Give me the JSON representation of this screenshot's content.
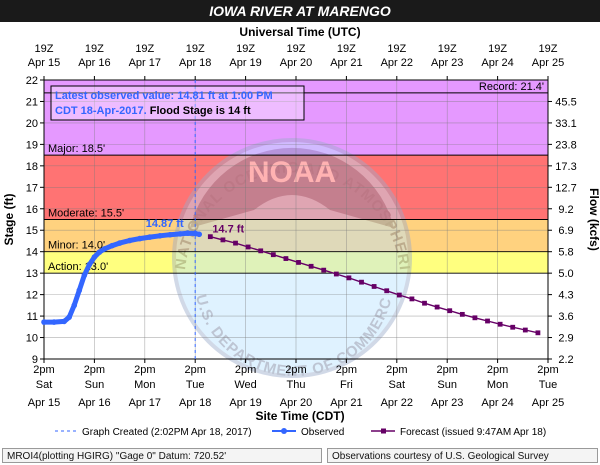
{
  "chart_data": {
    "type": "line",
    "title": "IOWA RIVER AT MARENGO",
    "top_axis_title": "Universal Time (UTC)",
    "bottom_axis_title": "Site Time (CDT)",
    "ylabel": "Stage (ft)",
    "y2label": "Flow (kcfs)",
    "ylim": [
      9,
      22
    ],
    "yticks": [
      9,
      10,
      11,
      12,
      13,
      14,
      15,
      16,
      17,
      18,
      19,
      20,
      21,
      22
    ],
    "xlim": [
      "Apr 15 2pm",
      "Apr 25 2pm"
    ],
    "xticks_bottom": [
      {
        "time": "2pm",
        "day": "Sat",
        "date": "Apr 15"
      },
      {
        "time": "2pm",
        "day": "Sun",
        "date": "Apr 16"
      },
      {
        "time": "2pm",
        "day": "Mon",
        "date": "Apr 17"
      },
      {
        "time": "2pm",
        "day": "Tue",
        "date": "Apr 18"
      },
      {
        "time": "2pm",
        "day": "Wed",
        "date": "Apr 19"
      },
      {
        "time": "2pm",
        "day": "Thu",
        "date": "Apr 20"
      },
      {
        "time": "2pm",
        "day": "Fri",
        "date": "Apr 21"
      },
      {
        "time": "2pm",
        "day": "Sat",
        "date": "Apr 22"
      },
      {
        "time": "2pm",
        "day": "Sun",
        "date": "Apr 23"
      },
      {
        "time": "2pm",
        "day": "Mon",
        "date": "Apr 24"
      },
      {
        "time": "2pm",
        "day": "Tue",
        "date": "Apr 25"
      }
    ],
    "xticks_top": [
      {
        "time": "19Z",
        "date": "Apr 15"
      },
      {
        "time": "19Z",
        "date": "Apr 16"
      },
      {
        "time": "19Z",
        "date": "Apr 17"
      },
      {
        "time": "19Z",
        "date": "Apr 18"
      },
      {
        "time": "19Z",
        "date": "Apr 19"
      },
      {
        "time": "19Z",
        "date": "Apr 20"
      },
      {
        "time": "19Z",
        "date": "Apr 21"
      },
      {
        "time": "19Z",
        "date": "Apr 22"
      },
      {
        "time": "19Z",
        "date": "Apr 23"
      },
      {
        "time": "19Z",
        "date": "Apr 24"
      },
      {
        "time": "19Z",
        "date": "Apr 25"
      }
    ],
    "flow_ticks": [
      {
        "stage": 9,
        "label": "2.2"
      },
      {
        "stage": 10,
        "label": "2.9"
      },
      {
        "stage": 11,
        "label": "3.6"
      },
      {
        "stage": 12,
        "label": "4.3"
      },
      {
        "stage": 13,
        "label": "5.0"
      },
      {
        "stage": 14,
        "label": "5.8"
      },
      {
        "stage": 15,
        "label": "6.9"
      },
      {
        "stage": 16,
        "label": "9.2"
      },
      {
        "stage": 17,
        "label": "12.7"
      },
      {
        "stage": 18,
        "label": "17.3"
      },
      {
        "stage": 19,
        "label": "23.8"
      },
      {
        "stage": 20,
        "label": "33.1"
      },
      {
        "stage": 21,
        "label": "45.5"
      }
    ],
    "flood_categories": [
      {
        "name": "Action",
        "stage": 13.0,
        "label": "Action: 13.0'",
        "color": "#ffff00"
      },
      {
        "name": "Minor",
        "stage": 14.0,
        "label": "Minor: 14.0'",
        "color": "#ffa500"
      },
      {
        "name": "Moderate",
        "stage": 15.5,
        "label": "Moderate: 15.5'",
        "color": "#ff0000"
      },
      {
        "name": "Major",
        "stage": 18.5,
        "label": "Major: 18.5'",
        "color": "#cc33ff"
      },
      {
        "name": "Record",
        "stage": 21.4,
        "label": "Record: 21.4'",
        "color": "#cc33ff"
      }
    ],
    "series": [
      {
        "name": "Observed",
        "color": "#3366ff",
        "points": [
          {
            "day": 0.0,
            "stage": 10.72
          },
          {
            "day": 0.2,
            "stage": 10.72
          },
          {
            "day": 0.4,
            "stage": 10.75
          },
          {
            "day": 0.5,
            "stage": 10.95
          },
          {
            "day": 0.6,
            "stage": 11.5
          },
          {
            "day": 0.7,
            "stage": 12.2
          },
          {
            "day": 0.8,
            "stage": 12.9
          },
          {
            "day": 0.9,
            "stage": 13.4
          },
          {
            "day": 1.0,
            "stage": 13.75
          },
          {
            "day": 1.1,
            "stage": 13.98
          },
          {
            "day": 1.2,
            "stage": 14.13
          },
          {
            "day": 1.35,
            "stage": 14.28
          },
          {
            "day": 1.5,
            "stage": 14.4
          },
          {
            "day": 1.7,
            "stage": 14.52
          },
          {
            "day": 1.9,
            "stage": 14.61
          },
          {
            "day": 2.1,
            "stage": 14.68
          },
          {
            "day": 2.3,
            "stage": 14.74
          },
          {
            "day": 2.5,
            "stage": 14.79
          },
          {
            "day": 2.7,
            "stage": 14.83
          },
          {
            "day": 2.85,
            "stage": 14.86
          },
          {
            "day": 3.0,
            "stage": 14.85
          },
          {
            "day": 3.08,
            "stage": 14.81
          }
        ]
      },
      {
        "name": "Forecast",
        "color": "#660066",
        "points": [
          {
            "day": 3.3,
            "stage": 14.7
          },
          {
            "day": 3.55,
            "stage": 14.55
          },
          {
            "day": 3.8,
            "stage": 14.4
          },
          {
            "day": 4.05,
            "stage": 14.22
          },
          {
            "day": 4.3,
            "stage": 14.04
          },
          {
            "day": 4.55,
            "stage": 13.86
          },
          {
            "day": 4.8,
            "stage": 13.68
          },
          {
            "day": 5.05,
            "stage": 13.5
          },
          {
            "day": 5.3,
            "stage": 13.32
          },
          {
            "day": 5.55,
            "stage": 13.14
          },
          {
            "day": 5.8,
            "stage": 12.96
          },
          {
            "day": 6.05,
            "stage": 12.78
          },
          {
            "day": 6.3,
            "stage": 12.58
          },
          {
            "day": 6.55,
            "stage": 12.38
          },
          {
            "day": 6.8,
            "stage": 12.18
          },
          {
            "day": 7.05,
            "stage": 11.98
          },
          {
            "day": 7.3,
            "stage": 11.8
          },
          {
            "day": 7.55,
            "stage": 11.6
          },
          {
            "day": 7.8,
            "stage": 11.42
          },
          {
            "day": 8.05,
            "stage": 11.25
          },
          {
            "day": 8.3,
            "stage": 11.08
          },
          {
            "day": 8.55,
            "stage": 10.92
          },
          {
            "day": 8.8,
            "stage": 10.77
          },
          {
            "day": 9.05,
            "stage": 10.62
          },
          {
            "day": 9.3,
            "stage": 10.48
          },
          {
            "day": 9.55,
            "stage": 10.35
          },
          {
            "day": 9.8,
            "stage": 10.22
          }
        ]
      }
    ],
    "graph_created_day": 3.0,
    "annotations": [
      {
        "text": "14.87 ft",
        "day": 2.85,
        "stage": 14.86,
        "color": "#3366ff"
      },
      {
        "text": "14.7 ft",
        "day": 3.3,
        "stage": 14.7,
        "color": "#660066"
      }
    ],
    "grid": true
  },
  "info_box": {
    "line1": "Latest observed value: 14.81 ft at 1:00 PM",
    "line2": "CDT 18-Apr-2017.",
    "flood_stage": " Flood Stage is 14 ft"
  },
  "legend": [
    {
      "label": "Graph Created (2:02PM Apr 18, 2017)",
      "style": "dashed",
      "color": "#3366ff"
    },
    {
      "label": "Observed",
      "style": "line-dot",
      "color": "#3366ff"
    },
    {
      "label": "Forecast (issued 9:47AM Apr 18)",
      "style": "line-square",
      "color": "#660066"
    }
  ],
  "footer": {
    "left": "MROI4(plotting HGIRG) \"Gage 0\" Datum: 720.52'",
    "right": "Observations courtesy of U.S. Geological Survey"
  },
  "watermark": {
    "logo_text": "NOAA",
    "ring_text": "NATIONAL OCEANIC AND ATMOSPHERIC ADMINISTRATION",
    "bottom_text": "U.S. DEPARTMENT OF COMMERCE"
  }
}
